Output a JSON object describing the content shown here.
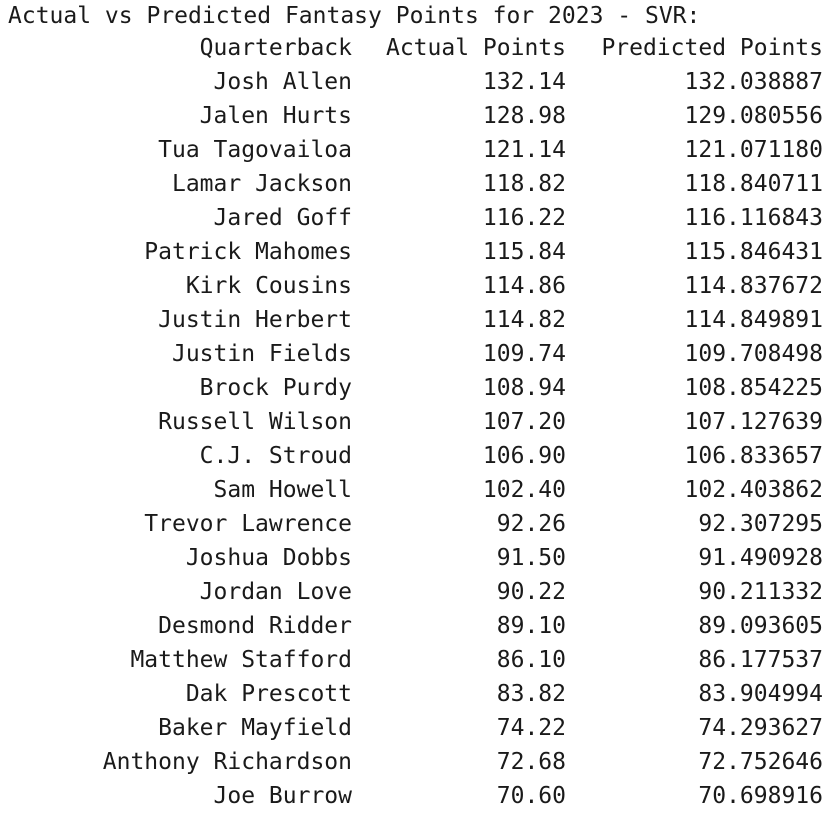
{
  "title": "Actual vs Predicted Fantasy Points for 2023 - SVR:",
  "columns": [
    "Quarterback",
    "Actual Points",
    "Predicted Points"
  ],
  "rows": [
    {
      "qb": "Josh Allen",
      "actual": "132.14",
      "predicted": "132.038887"
    },
    {
      "qb": "Jalen Hurts",
      "actual": "128.98",
      "predicted": "129.080556"
    },
    {
      "qb": "Tua Tagovailoa",
      "actual": "121.14",
      "predicted": "121.071180"
    },
    {
      "qb": "Lamar Jackson",
      "actual": "118.82",
      "predicted": "118.840711"
    },
    {
      "qb": "Jared Goff",
      "actual": "116.22",
      "predicted": "116.116843"
    },
    {
      "qb": "Patrick Mahomes",
      "actual": "115.84",
      "predicted": "115.846431"
    },
    {
      "qb": "Kirk Cousins",
      "actual": "114.86",
      "predicted": "114.837672"
    },
    {
      "qb": "Justin Herbert",
      "actual": "114.82",
      "predicted": "114.849891"
    },
    {
      "qb": "Justin Fields",
      "actual": "109.74",
      "predicted": "109.708498"
    },
    {
      "qb": "Brock Purdy",
      "actual": "108.94",
      "predicted": "108.854225"
    },
    {
      "qb": "Russell Wilson",
      "actual": "107.20",
      "predicted": "107.127639"
    },
    {
      "qb": "C.J. Stroud",
      "actual": "106.90",
      "predicted": "106.833657"
    },
    {
      "qb": "Sam Howell",
      "actual": "102.40",
      "predicted": "102.403862"
    },
    {
      "qb": "Trevor Lawrence",
      "actual": "92.26",
      "predicted": "92.307295"
    },
    {
      "qb": "Joshua Dobbs",
      "actual": "91.50",
      "predicted": "91.490928"
    },
    {
      "qb": "Jordan Love",
      "actual": "90.22",
      "predicted": "90.211332"
    },
    {
      "qb": "Desmond Ridder",
      "actual": "89.10",
      "predicted": "89.093605"
    },
    {
      "qb": "Matthew Stafford",
      "actual": "86.10",
      "predicted": "86.177537"
    },
    {
      "qb": "Dak Prescott",
      "actual": "83.82",
      "predicted": "83.904994"
    },
    {
      "qb": "Baker Mayfield",
      "actual": "74.22",
      "predicted": "74.293627"
    },
    {
      "qb": "Anthony Richardson",
      "actual": "72.68",
      "predicted": "72.752646"
    },
    {
      "qb": "Joe Burrow",
      "actual": "70.60",
      "predicted": "70.698916"
    }
  ]
}
